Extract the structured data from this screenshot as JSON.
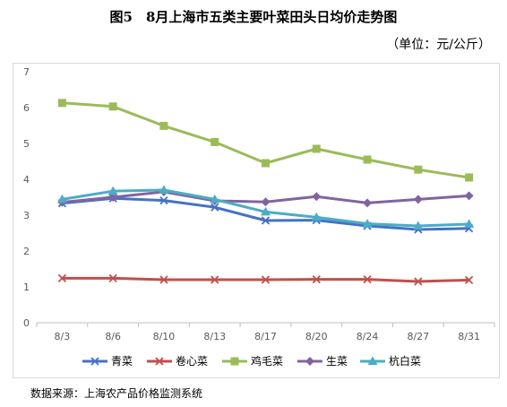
{
  "header": {
    "title": "图5　8月上海市五类主要叶菜田头日均价走势图",
    "unit": "（单位：元/公斤）"
  },
  "footer": {
    "source": "数据来源：上海农产品价格监测系统"
  },
  "chart_data": {
    "type": "line",
    "title": "图5　8月上海市五类主要叶菜田头日均价走势图",
    "xlabel": "",
    "ylabel": "",
    "ylim": [
      0,
      7
    ],
    "yticks": [
      0,
      1,
      2,
      3,
      4,
      5,
      6,
      7
    ],
    "categories": [
      "8/3",
      "8/6",
      "8/10",
      "8/13",
      "8/17",
      "8/20",
      "8/24",
      "8/27",
      "8/31"
    ],
    "grid": false,
    "legend": "bottom",
    "series": [
      {
        "name": "青菜",
        "color": "#4472C4",
        "marker": "x",
        "values": [
          3.33,
          3.47,
          3.41,
          3.22,
          2.85,
          2.86,
          2.7,
          2.6,
          2.63
        ]
      },
      {
        "name": "卷心菜",
        "color": "#C0504D",
        "marker": "x",
        "values": [
          1.24,
          1.24,
          1.2,
          1.2,
          1.2,
          1.21,
          1.21,
          1.15,
          1.19
        ]
      },
      {
        "name": "鸡毛菜",
        "color": "#9BBB59",
        "marker": "square",
        "values": [
          6.13,
          6.03,
          5.49,
          5.04,
          4.45,
          4.85,
          4.55,
          4.27,
          4.05
        ]
      },
      {
        "name": "生菜",
        "color": "#8064A2",
        "marker": "diamond",
        "values": [
          3.36,
          3.5,
          3.65,
          3.4,
          3.37,
          3.52,
          3.34,
          3.44,
          3.54
        ]
      },
      {
        "name": "杭白菜",
        "color": "#4BACC6",
        "marker": "triangle",
        "values": [
          3.44,
          3.67,
          3.7,
          3.44,
          3.09,
          2.94,
          2.76,
          2.7,
          2.75
        ]
      }
    ]
  }
}
